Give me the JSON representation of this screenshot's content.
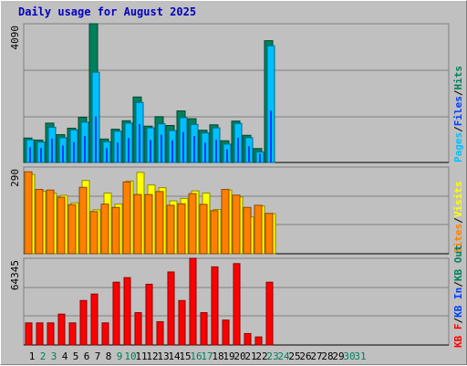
{
  "title": "Daily usage for August 2025",
  "colors": {
    "background": "#c0c0c0",
    "title": "#0000c0",
    "hits": "#00805c",
    "files": "#0040ff",
    "pages": "#00c0ff",
    "visits": "#ffff00",
    "sites": "#ff8000",
    "kbin": "#0040ff",
    "kbout": "#00805c",
    "kbf": "#ff0000"
  },
  "chart_data": [
    {
      "type": "bar",
      "panel": "hits-files-pages",
      "ylim": [
        0,
        4090
      ],
      "max_label": "4090",
      "legend": [
        {
          "label": "Pages",
          "color": "#00c0ff"
        },
        {
          "label": "Files",
          "color": "#0040ff"
        },
        {
          "label": "Hits",
          "color": "#00805c"
        }
      ],
      "categories": [
        "1",
        "2",
        "3",
        "4",
        "5",
        "6",
        "7",
        "8",
        "9",
        "10",
        "11",
        "12",
        "13",
        "14",
        "15",
        "16",
        "17",
        "18",
        "19",
        "20",
        "21",
        "22",
        "23",
        "24",
        "25",
        "26",
        "27",
        "28",
        "29",
        "30",
        "31"
      ],
      "weekend_days": [
        "2",
        "3",
        "9",
        "10",
        "16",
        "17",
        "23",
        "24",
        "30",
        "31"
      ],
      "series": [
        {
          "name": "Hits",
          "values": [
            720,
            660,
            1160,
            820,
            1010,
            1330,
            4090,
            690,
            980,
            1230,
            1930,
            1070,
            1350,
            1090,
            1520,
            1290,
            950,
            1110,
            640,
            1220,
            800,
            410,
            3590,
            0,
            0,
            0,
            0,
            0,
            0,
            0,
            0
          ]
        },
        {
          "name": "Files",
          "values": [
            450,
            430,
            700,
            500,
            600,
            780,
            1360,
            420,
            590,
            720,
            1130,
            660,
            820,
            650,
            900,
            780,
            580,
            670,
            390,
            730,
            480,
            260,
            1530,
            0,
            0,
            0,
            0,
            0,
            0,
            0,
            0
          ]
        },
        {
          "name": "Pages",
          "values": [
            670,
            600,
            1040,
            730,
            960,
            1190,
            2660,
            610,
            920,
            1160,
            1770,
            1020,
            1140,
            940,
            1320,
            1120,
            870,
            1020,
            540,
            1150,
            730,
            310,
            3440,
            0,
            0,
            0,
            0,
            0,
            0,
            0,
            0
          ]
        }
      ]
    },
    {
      "type": "bar",
      "panel": "visits-sites",
      "ylim": [
        0,
        290
      ],
      "max_label": "290",
      "legend": [
        {
          "label": "Sites",
          "color": "#ff8000"
        },
        {
          "label": "Visits",
          "color": "#ffff00"
        }
      ],
      "categories": [
        "1",
        "2",
        "3",
        "4",
        "5",
        "6",
        "7",
        "8",
        "9",
        "10",
        "11",
        "12",
        "13",
        "14",
        "15",
        "16",
        "17",
        "18",
        "19",
        "20",
        "21",
        "22",
        "23",
        "24",
        "25",
        "26",
        "27",
        "28",
        "29",
        "30",
        "31"
      ],
      "series": [
        {
          "name": "Visits",
          "values": [
            265,
            209,
            202,
            195,
            170,
            245,
            147,
            203,
            166,
            243,
            272,
            230,
            221,
            177,
            185,
            210,
            203,
            148,
            213,
            190,
            123,
            160,
            134,
            0,
            0,
            0,
            0,
            0,
            0,
            0,
            0
          ]
        },
        {
          "name": "Sites",
          "values": [
            274,
            215,
            213,
            189,
            164,
            222,
            141,
            166,
            155,
            240,
            198,
            198,
            208,
            162,
            167,
            201,
            165,
            144,
            215,
            196,
            155,
            162,
            135,
            0,
            0,
            0,
            0,
            0,
            0,
            0,
            0
          ]
        }
      ]
    },
    {
      "type": "bar",
      "panel": "kbytes",
      "ylim": [
        0,
        64345
      ],
      "max_label": "64345",
      "legend": [
        {
          "label": "KB F",
          "color": "#ff0000"
        },
        {
          "label": "KB In",
          "color": "#0040ff"
        },
        {
          "label": "KB Out",
          "color": "#00805c"
        }
      ],
      "categories": [
        "1",
        "2",
        "3",
        "4",
        "5",
        "6",
        "7",
        "8",
        "9",
        "10",
        "11",
        "12",
        "13",
        "14",
        "15",
        "16",
        "17",
        "18",
        "19",
        "20",
        "21",
        "22",
        "23",
        "24",
        "25",
        "26",
        "27",
        "28",
        "29",
        "30",
        "31"
      ],
      "series": [
        {
          "name": "KB F",
          "values": [
            16400,
            16400,
            16400,
            22900,
            16400,
            33000,
            37800,
            16400,
            46600,
            50000,
            24000,
            45100,
            17300,
            54200,
            33000,
            64345,
            24000,
            58000,
            18500,
            60400,
            8500,
            6000,
            46600,
            0,
            0,
            0,
            0,
            0,
            0,
            0,
            0
          ]
        }
      ]
    }
  ]
}
